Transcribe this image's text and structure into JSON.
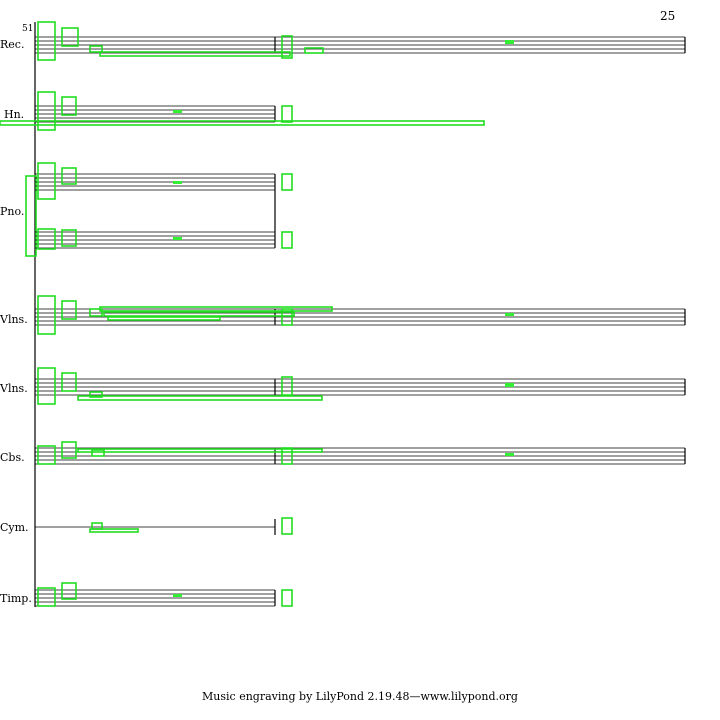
{
  "page_number": "25",
  "measure_number": "51",
  "instruments": [
    {
      "id": "rec",
      "label": "Rec."
    },
    {
      "id": "hn",
      "label": "Hn."
    },
    {
      "id": "pno",
      "label": "Pno."
    },
    {
      "id": "vlns1",
      "label": "Vlns."
    },
    {
      "id": "vlns2",
      "label": "Vlns."
    },
    {
      "id": "cbs",
      "label": "Cbs."
    },
    {
      "id": "cym",
      "label": "Cym."
    },
    {
      "id": "timp",
      "label": "Timp."
    }
  ],
  "footer": "Music engraving by LilyPond 2.19.48—www.lilypond.org",
  "colors": {
    "annotation": "#22dd22",
    "ink": "#000000"
  }
}
